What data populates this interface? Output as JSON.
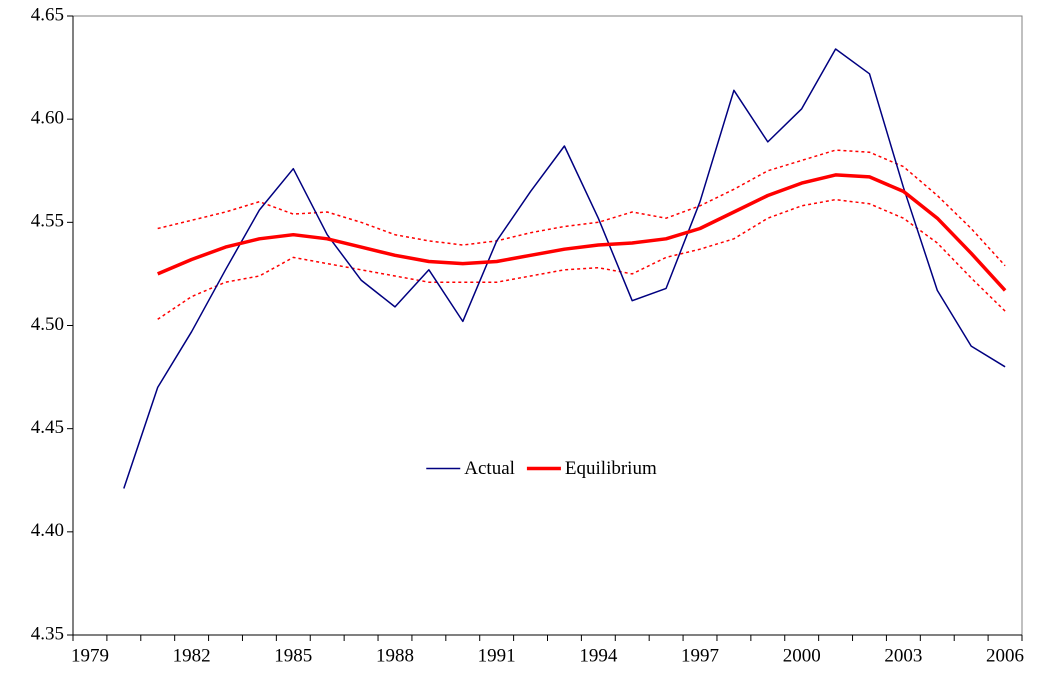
{
  "chart_data": {
    "type": "line",
    "categories": [
      "1979",
      null,
      null,
      "1982",
      null,
      null,
      "1985",
      null,
      null,
      "1988",
      null,
      null,
      "1991",
      null,
      null,
      "1994",
      null,
      null,
      "1997",
      null,
      null,
      "2000",
      null,
      null,
      "2003",
      null,
      null,
      "2006"
    ],
    "series": [
      {
        "color": "#ff0000",
        "dash": "dotted",
        "width": 1.5,
        "values": [
          null,
          null,
          4.547,
          4.551,
          4.555,
          4.56,
          4.554,
          4.555,
          4.55,
          4.544,
          4.541,
          4.539,
          4.541,
          4.545,
          4.548,
          4.55,
          4.555,
          4.552,
          4.558,
          4.566,
          4.575,
          4.58,
          4.585,
          4.584,
          4.577,
          4.563,
          4.547,
          4.529
        ]
      },
      {
        "color": "#ff0000",
        "dash": "dotted",
        "width": 1.5,
        "values": [
          null,
          null,
          4.503,
          4.514,
          4.521,
          4.524,
          4.533,
          4.53,
          4.527,
          4.524,
          4.521,
          4.521,
          4.521,
          4.524,
          4.527,
          4.528,
          4.525,
          4.533,
          4.537,
          4.542,
          4.552,
          4.558,
          4.561,
          4.559,
          4.552,
          4.54,
          4.523,
          4.507
        ]
      },
      {
        "name": "Actual",
        "color": "#000080",
        "width": 1.5,
        "values": [
          null,
          4.421,
          4.47,
          4.497,
          4.527,
          4.556,
          4.576,
          4.544,
          4.522,
          4.509,
          4.527,
          4.502,
          4.541,
          4.565,
          4.587,
          4.552,
          4.512,
          4.518,
          4.56,
          4.614,
          4.589,
          4.605,
          4.634,
          4.622,
          4.567,
          4.517,
          4.49,
          4.48
        ]
      },
      {
        "name": "Equilibrium",
        "color": "#ff0000",
        "width": 3.5,
        "values": [
          null,
          null,
          4.525,
          4.532,
          4.538,
          4.542,
          4.544,
          4.542,
          4.538,
          4.534,
          4.531,
          4.53,
          4.531,
          4.534,
          4.537,
          4.539,
          4.54,
          4.542,
          4.547,
          4.555,
          4.563,
          4.569,
          4.573,
          4.572,
          4.565,
          4.552,
          4.535,
          4.517
        ]
      }
    ],
    "ylim": [
      4.35,
      4.65
    ],
    "yticks": [
      4.35,
      {
        "value": 4.4,
        "label": "4.40"
      },
      4.45,
      {
        "value": 4.5,
        "label": "4.50"
      },
      4.55,
      {
        "value": 4.6,
        "label": "4.60"
      },
      4.65
    ],
    "grid": false,
    "legend": "center"
  }
}
